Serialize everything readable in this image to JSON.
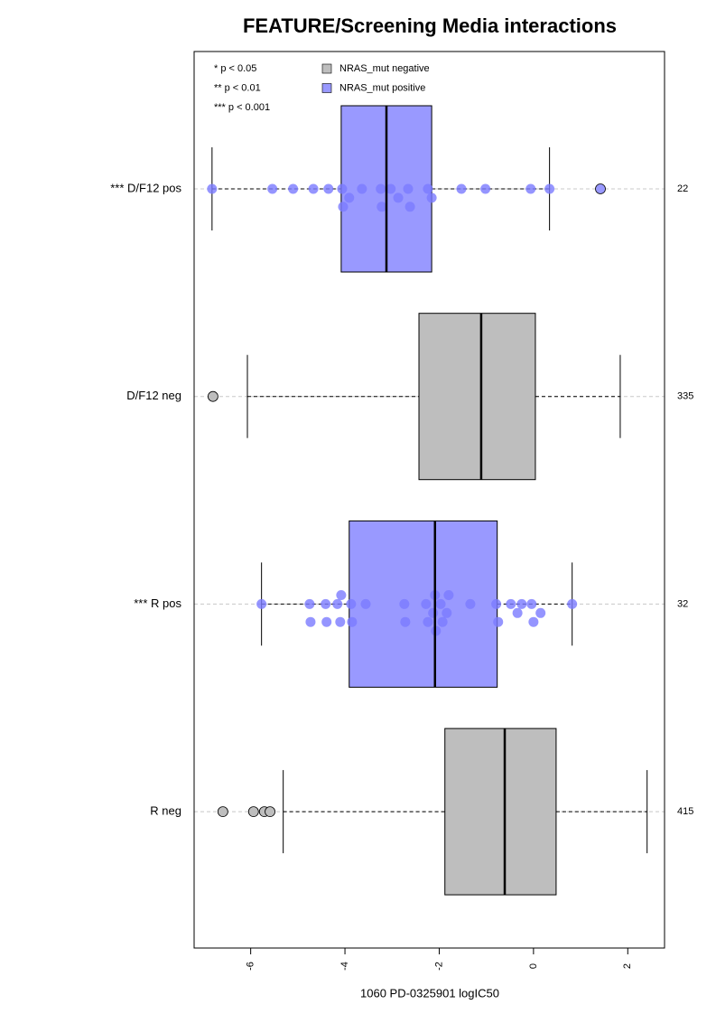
{
  "chart_data": {
    "type": "boxplot",
    "title": "FEATURE/Screening Media interactions",
    "xlabel": "1060 PD-0325901 logIC50",
    "xlim": [
      -7.2,
      2.78
    ],
    "xticks": [
      -6,
      -4,
      -2,
      0,
      2
    ],
    "significance_notes": [
      "* p < 0.05",
      "** p < 0.01",
      "*** p < 0.001"
    ],
    "series": [
      {
        "name": "NRAS_mut negative",
        "color": "#bebebe"
      },
      {
        "name": "NRAS_mut positive",
        "color": "#9999ff"
      }
    ],
    "categories": [
      "*** D/F12 pos",
      "D/F12 neg",
      "*** R pos",
      "R neg"
    ],
    "counts": [
      22,
      335,
      32,
      415
    ],
    "boxes": [
      {
        "color": "#9999ff",
        "point_color": "#7b7bff",
        "whislo": -6.82,
        "q1": -4.08,
        "med": -3.12,
        "q3": -2.16,
        "whishi": 0.34,
        "outliers": [
          1.42
        ],
        "points": [
          -6.82,
          -5.54,
          -5.1,
          -4.67,
          -4.35,
          -4.06,
          -4.04,
          -3.91,
          -3.64,
          -3.24,
          -3.22,
          -3.03,
          -2.87,
          -2.66,
          -2.62,
          -2.24,
          -2.16,
          -1.53,
          -1.02,
          -0.06,
          0.34
        ]
      },
      {
        "color": "#bebebe",
        "point_color": "#b0b0b0",
        "whislo": -6.07,
        "q1": -2.43,
        "med": -1.11,
        "q3": 0.04,
        "whishi": 1.84,
        "outliers": [
          -6.8
        ]
      },
      {
        "color": "#9999ff",
        "point_color": "#7b7bff",
        "whislo": -5.77,
        "q1": -3.91,
        "med": -2.09,
        "q3": -0.77,
        "whishi": 0.82,
        "outliers": [],
        "points": [
          -5.77,
          -4.75,
          -4.73,
          -4.41,
          -4.39,
          -4.16,
          -4.1,
          -4.08,
          -3.87,
          -3.85,
          -3.56,
          -2.74,
          -2.72,
          -2.28,
          -2.24,
          -2.13,
          -2.09,
          -2.07,
          -1.97,
          -1.93,
          -1.84,
          -1.8,
          -1.34,
          -0.79,
          -0.75,
          -0.48,
          -0.34,
          -0.25,
          -0.04,
          0.0,
          0.15,
          0.82
        ]
      },
      {
        "color": "#bebebe",
        "point_color": "#b0b0b0",
        "whislo": -5.31,
        "q1": -1.88,
        "med": -0.61,
        "q3": 0.48,
        "whishi": 2.41,
        "outliers": [
          -6.59,
          -5.94,
          -5.71,
          -5.59
        ]
      }
    ]
  }
}
